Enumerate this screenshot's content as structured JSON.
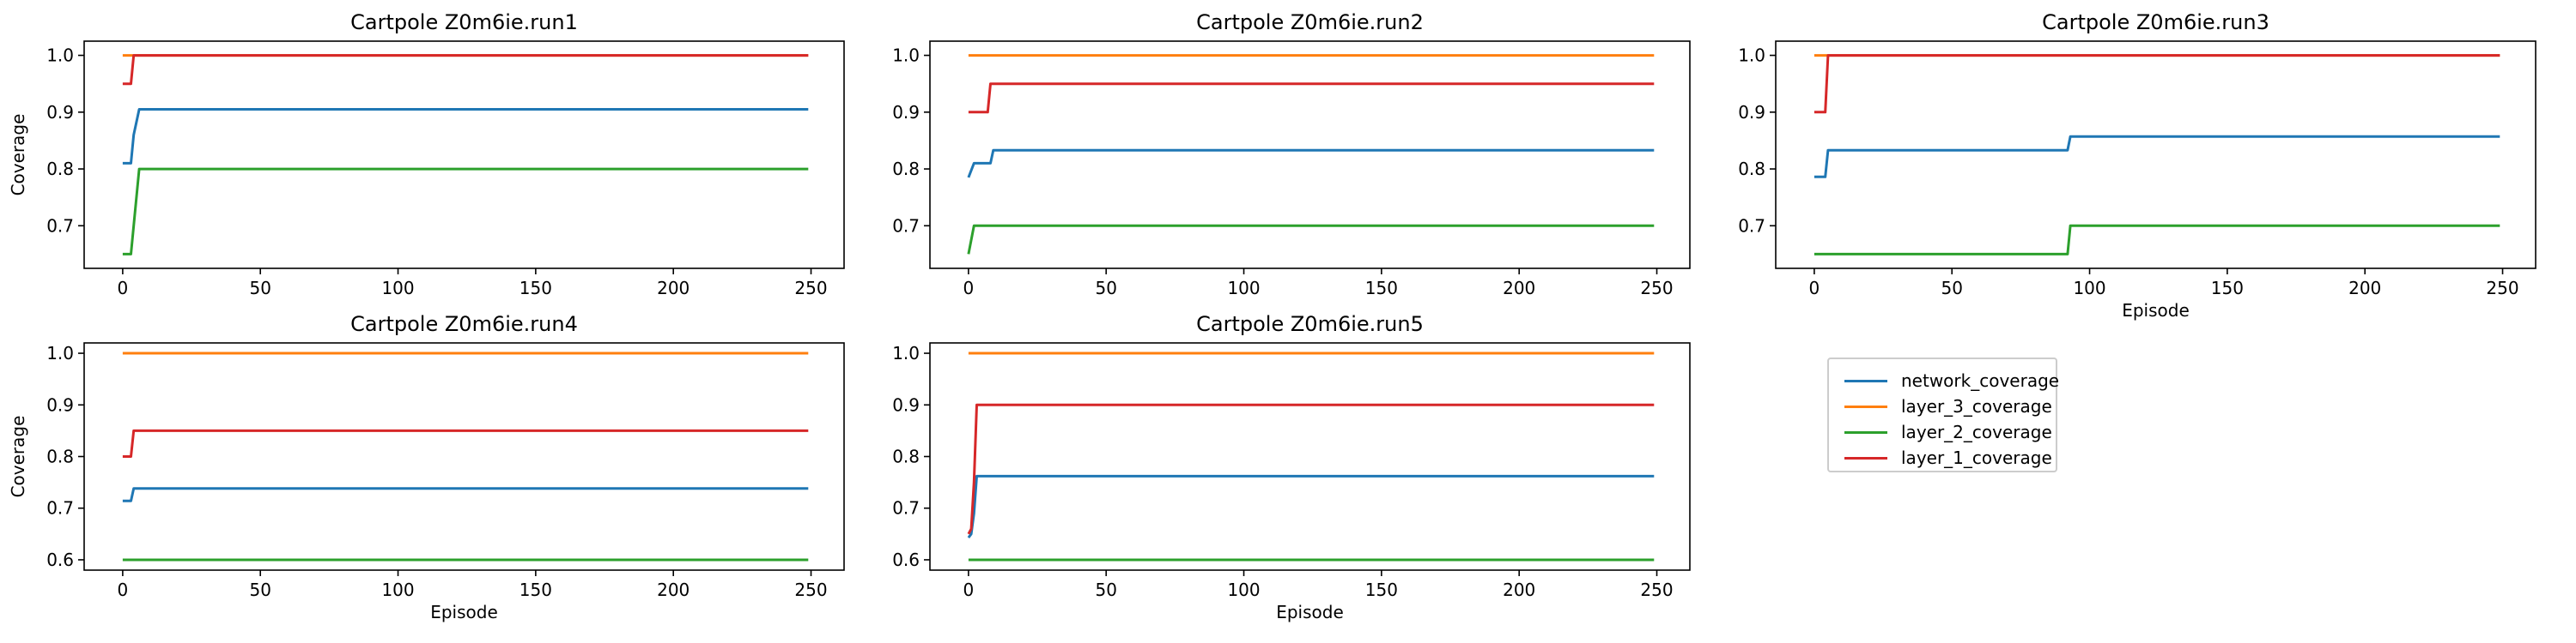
{
  "figure": {
    "colors": {
      "network_coverage": "#1f77b4",
      "layer_3_coverage": "#ff7f0e",
      "layer_2_coverage": "#2ca02c",
      "layer_1_coverage": "#d62728"
    }
  },
  "legend": {
    "items": [
      {
        "label": "network_coverage",
        "color": "#1f77b4"
      },
      {
        "label": "layer_3_coverage",
        "color": "#ff7f0e"
      },
      {
        "label": "layer_2_coverage",
        "color": "#2ca02c"
      },
      {
        "label": "layer_1_coverage",
        "color": "#d62728"
      }
    ]
  },
  "chart_data": [
    {
      "type": "line",
      "title": "Cartpole Z0m6ie.run1",
      "xlabel": "",
      "ylabel": "Coverage",
      "xlim": [
        -14,
        262
      ],
      "ylim": [
        0.625,
        1.025
      ],
      "xticks": [
        0,
        50,
        100,
        150,
        200,
        250
      ],
      "xtick_labels": [
        "0",
        "50",
        "100",
        "150",
        "200",
        "250"
      ],
      "yticks": [
        0.7,
        0.8,
        0.9,
        1.0
      ],
      "ytick_labels": [
        "0.7",
        "0.8",
        "0.9",
        "1.0"
      ],
      "series": [
        {
          "name": "network_coverage",
          "x": [
            0,
            3,
            4,
            6,
            249
          ],
          "y": [
            0.81,
            0.81,
            0.86,
            0.905,
            0.905
          ]
        },
        {
          "name": "layer_3_coverage",
          "x": [
            0,
            249
          ],
          "y": [
            1.0,
            1.0
          ]
        },
        {
          "name": "layer_2_coverage",
          "x": [
            0,
            3,
            6,
            249
          ],
          "y": [
            0.65,
            0.65,
            0.8,
            0.8
          ]
        },
        {
          "name": "layer_1_coverage",
          "x": [
            0,
            3,
            4,
            249
          ],
          "y": [
            0.95,
            0.95,
            1.0,
            1.0
          ]
        }
      ]
    },
    {
      "type": "line",
      "title": "Cartpole Z0m6ie.run2",
      "xlabel": "",
      "ylabel": "",
      "xlim": [
        -14,
        262
      ],
      "ylim": [
        0.625,
        1.025
      ],
      "xticks": [
        0,
        50,
        100,
        150,
        200,
        250
      ],
      "xtick_labels": [
        "0",
        "50",
        "100",
        "150",
        "200",
        "250"
      ],
      "yticks": [
        0.7,
        0.8,
        0.9,
        1.0
      ],
      "ytick_labels": [
        "0.7",
        "0.8",
        "0.9",
        "1.0"
      ],
      "series": [
        {
          "name": "network_coverage",
          "x": [
            0,
            2,
            8,
            9,
            249
          ],
          "y": [
            0.785,
            0.81,
            0.81,
            0.833,
            0.833
          ]
        },
        {
          "name": "layer_3_coverage",
          "x": [
            0,
            249
          ],
          "y": [
            1.0,
            1.0
          ]
        },
        {
          "name": "layer_2_coverage",
          "x": [
            0,
            2,
            249
          ],
          "y": [
            0.65,
            0.7,
            0.7
          ]
        },
        {
          "name": "layer_1_coverage",
          "x": [
            0,
            7,
            8,
            249
          ],
          "y": [
            0.9,
            0.9,
            0.95,
            0.95
          ]
        }
      ]
    },
    {
      "type": "line",
      "title": "Cartpole Z0m6ie.run3",
      "xlabel": "Episode",
      "ylabel": "",
      "xlim": [
        -14,
        262
      ],
      "ylim": [
        0.625,
        1.025
      ],
      "xticks": [
        0,
        50,
        100,
        150,
        200,
        250
      ],
      "xtick_labels": [
        "0",
        "50",
        "100",
        "150",
        "200",
        "250"
      ],
      "yticks": [
        0.7,
        0.8,
        0.9,
        1.0
      ],
      "ytick_labels": [
        "0.7",
        "0.8",
        "0.9",
        "1.0"
      ],
      "series": [
        {
          "name": "network_coverage",
          "x": [
            0,
            4,
            5,
            92,
            93,
            249
          ],
          "y": [
            0.786,
            0.786,
            0.833,
            0.833,
            0.857,
            0.857
          ]
        },
        {
          "name": "layer_3_coverage",
          "x": [
            0,
            249
          ],
          "y": [
            1.0,
            1.0
          ]
        },
        {
          "name": "layer_2_coverage",
          "x": [
            0,
            92,
            93,
            249
          ],
          "y": [
            0.65,
            0.65,
            0.7,
            0.7
          ]
        },
        {
          "name": "layer_1_coverage",
          "x": [
            0,
            4,
            5,
            249
          ],
          "y": [
            0.9,
            0.9,
            1.0,
            1.0
          ]
        }
      ]
    },
    {
      "type": "line",
      "title": "Cartpole Z0m6ie.run4",
      "xlabel": "Episode",
      "ylabel": "Coverage",
      "xlim": [
        -14,
        262
      ],
      "ylim": [
        0.58,
        1.02
      ],
      "xticks": [
        0,
        50,
        100,
        150,
        200,
        250
      ],
      "xtick_labels": [
        "0",
        "50",
        "100",
        "150",
        "200",
        "250"
      ],
      "yticks": [
        0.6,
        0.7,
        0.8,
        0.9,
        1.0
      ],
      "ytick_labels": [
        "0.6",
        "0.7",
        "0.8",
        "0.9",
        "1.0"
      ],
      "series": [
        {
          "name": "network_coverage",
          "x": [
            0,
            3,
            4,
            249
          ],
          "y": [
            0.714,
            0.714,
            0.738,
            0.738
          ]
        },
        {
          "name": "layer_3_coverage",
          "x": [
            0,
            249
          ],
          "y": [
            1.0,
            1.0
          ]
        },
        {
          "name": "layer_2_coverage",
          "x": [
            0,
            249
          ],
          "y": [
            0.6,
            0.6
          ]
        },
        {
          "name": "layer_1_coverage",
          "x": [
            0,
            3,
            4,
            249
          ],
          "y": [
            0.8,
            0.8,
            0.85,
            0.85
          ]
        }
      ]
    },
    {
      "type": "line",
      "title": "Cartpole Z0m6ie.run5",
      "xlabel": "Episode",
      "ylabel": "",
      "xlim": [
        -14,
        262
      ],
      "ylim": [
        0.58,
        1.02
      ],
      "xticks": [
        0,
        50,
        100,
        150,
        200,
        250
      ],
      "xtick_labels": [
        "0",
        "50",
        "100",
        "150",
        "200",
        "250"
      ],
      "yticks": [
        0.6,
        0.7,
        0.8,
        0.9,
        1.0
      ],
      "ytick_labels": [
        "0.6",
        "0.7",
        "0.8",
        "0.9",
        "1.0"
      ],
      "series": [
        {
          "name": "network_coverage",
          "x": [
            0,
            1,
            2,
            3,
            249
          ],
          "y": [
            0.643,
            0.65,
            0.69,
            0.762,
            0.762
          ]
        },
        {
          "name": "layer_3_coverage",
          "x": [
            0,
            249
          ],
          "y": [
            1.0,
            1.0
          ]
        },
        {
          "name": "layer_2_coverage",
          "x": [
            0,
            249
          ],
          "y": [
            0.6,
            0.6
          ]
        },
        {
          "name": "layer_1_coverage",
          "x": [
            0,
            1,
            2,
            3,
            249
          ],
          "y": [
            0.65,
            0.66,
            0.75,
            0.9,
            0.9
          ]
        }
      ]
    }
  ]
}
